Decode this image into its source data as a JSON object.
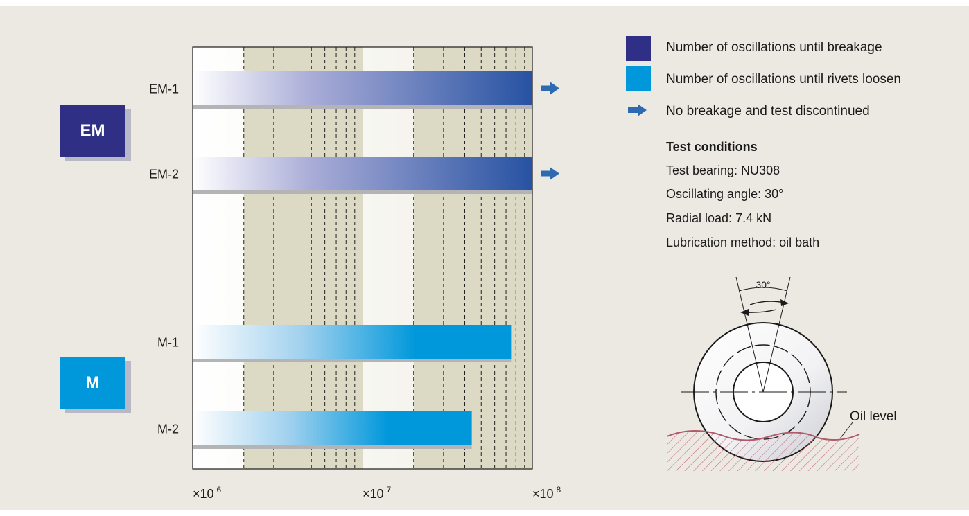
{
  "colors": {
    "background": "#ece8e2",
    "em_dark": "#2f2f86",
    "em_bar": "#2752a2",
    "m_blue": "#0098db",
    "arrow": "#2e6ab2",
    "band": "#dcdac4",
    "oil": "#b05a6a"
  },
  "groups": [
    {
      "label": "EM",
      "color": "#2f2f86"
    },
    {
      "label": "M",
      "color": "#0098db"
    }
  ],
  "chart_data": {
    "type": "bar",
    "orientation": "horizontal",
    "x_scale": "log",
    "xlim": [
      1000000,
      100000000
    ],
    "x_tick_labels": [
      {
        "base": "×10",
        "exp": "6",
        "value": 1000000
      },
      {
        "base": "×10",
        "exp": "7",
        "value": 10000000
      },
      {
        "base": "×10",
        "exp": "8",
        "value": 100000000
      }
    ],
    "bars": [
      {
        "label": "EM-1",
        "value": 100000000,
        "series": "Number of oscillations until breakage",
        "test_discontinued": true
      },
      {
        "label": "EM-2",
        "value": 100000000,
        "series": "Number of oscillations until rivets loosen",
        "test_discontinued": true
      },
      {
        "label": "M-1",
        "value": 75000000,
        "series": "Number of oscillations until rivets loosen",
        "test_discontinued": false
      },
      {
        "label": "M-2",
        "value": 44000000,
        "series": "Number of oscillations until rivets loosen",
        "test_discontinued": false
      }
    ],
    "grid": true
  },
  "legend": [
    {
      "kind": "swatch",
      "color": "#2f2f86",
      "text": "Number of oscillations until breakage"
    },
    {
      "kind": "swatch",
      "color": "#0098db",
      "text": "Number of oscillations until rivets loosen"
    },
    {
      "kind": "arrow",
      "color": "#2e6ab2",
      "text": "No breakage and test discontinued"
    }
  ],
  "test_conditions": {
    "title": "Test conditions",
    "lines": [
      "Test bearing: NU308",
      "Oscillating angle: 30°",
      "Radial load: 7.4 kN",
      "Lubrication method: oil bath"
    ]
  },
  "diagram": {
    "angle_label": "30°",
    "oil_level_label": "Oil level"
  }
}
